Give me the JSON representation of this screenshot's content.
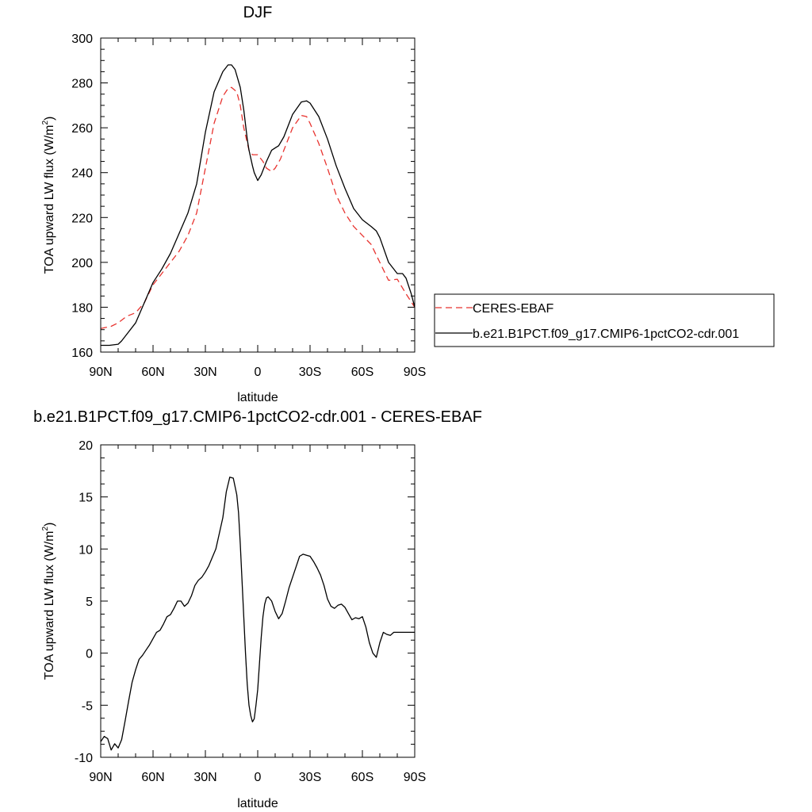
{
  "chart_data": [
    {
      "type": "line",
      "title": "DJF",
      "xlabel": "latitude",
      "ylabel": "TOA upward LW flux (W/m²)",
      "ylabel_main": "TOA upward LW flux (W/m",
      "ylabel_sup": "2",
      "ylabel_close": ")",
      "xlim": [
        90,
        -90
      ],
      "ylim": [
        160,
        300
      ],
      "xticks": [
        90,
        60,
        30,
        0,
        -30,
        -60,
        -90
      ],
      "xtick_labels": [
        "90N",
        "60N",
        "30N",
        "0",
        "30S",
        "60S",
        "90S"
      ],
      "yticks": [
        160,
        180,
        200,
        220,
        240,
        260,
        280,
        300
      ],
      "ytick_labels": [
        "160",
        "180",
        "200",
        "220",
        "240",
        "260",
        "280",
        "300"
      ],
      "grid": false,
      "legend_position": "right-outside",
      "series": [
        {
          "name": "CERES-EBAF",
          "color": "#e8332f",
          "dash": "dashed",
          "x": [
            90,
            84,
            80,
            75,
            70,
            65,
            60,
            55,
            50,
            45,
            40,
            35,
            30,
            25,
            20,
            17,
            15,
            12,
            10,
            8,
            5,
            3,
            0,
            -3,
            -5,
            -8,
            -10,
            -13,
            -15,
            -20,
            -25,
            -28,
            -30,
            -35,
            -40,
            -45,
            -50,
            -55,
            -60,
            -65,
            -70,
            -75,
            -80,
            -85,
            -90
          ],
          "y": [
            170.5,
            171.5,
            173,
            176,
            177.5,
            182,
            190,
            195,
            200,
            205,
            212,
            222,
            242,
            262,
            274,
            277.5,
            278,
            276,
            270,
            260,
            250,
            248,
            248,
            245,
            242,
            240.5,
            242,
            246,
            250,
            260,
            265.5,
            265,
            262,
            253,
            242,
            230,
            222,
            216,
            212,
            208,
            200,
            192,
            192.5,
            186,
            180
          ]
        },
        {
          "name": "b.e21.B1PCT.f09_g17.CMIP6-1pctCO2-cdr.001",
          "color": "#000000",
          "dash": "solid",
          "x": [
            90,
            85,
            80,
            78,
            75,
            70,
            65,
            60,
            55,
            50,
            45,
            40,
            35,
            30,
            25,
            20,
            17,
            15,
            13,
            10,
            8,
            6,
            5,
            3,
            2,
            0,
            -2,
            -5,
            -8,
            -10,
            -12,
            -15,
            -18,
            -20,
            -25,
            -28,
            -30,
            -35,
            -40,
            -45,
            -50,
            -55,
            -60,
            -65,
            -68,
            -70,
            -75,
            -80,
            -83,
            -85,
            -88,
            -90
          ],
          "y": [
            163,
            163,
            163.5,
            165,
            168,
            173,
            182,
            191,
            197,
            204,
            213,
            222,
            235,
            258,
            276,
            285,
            288,
            288,
            286,
            278,
            268,
            255,
            250,
            243,
            240,
            236.5,
            239,
            245,
            250,
            251,
            252,
            256,
            262,
            266,
            271.5,
            272,
            271,
            265,
            255,
            243,
            233,
            224,
            219,
            216,
            214,
            211,
            200,
            195,
            195,
            193,
            186,
            180
          ]
        }
      ]
    },
    {
      "type": "line",
      "title": "b.e21.B1PCT.f09_g17.CMIP6-1pctCO2-cdr.001 - CERES-EBAF",
      "xlabel": "latitude",
      "ylabel": "TOA upward LW flux (W/m²)",
      "ylabel_main": "TOA upward LW flux (W/m",
      "ylabel_sup": "2",
      "ylabel_close": ")",
      "xlim": [
        90,
        -90
      ],
      "ylim": [
        -10,
        20
      ],
      "xticks": [
        90,
        60,
        30,
        0,
        -30,
        -60,
        -90
      ],
      "xtick_labels": [
        "90N",
        "60N",
        "30N",
        "0",
        "30S",
        "60S",
        "90S"
      ],
      "yticks": [
        -10,
        -5,
        0,
        5,
        10,
        15,
        20
      ],
      "ytick_labels": [
        "-10",
        "-5",
        "0",
        "5",
        "10",
        "15",
        "20"
      ],
      "grid": false,
      "series": [
        {
          "name": "",
          "color": "#000000",
          "dash": "solid",
          "x": [
            90,
            88,
            86,
            84,
            82,
            80,
            78,
            76,
            74,
            72,
            70,
            68,
            66,
            64,
            62,
            60,
            58,
            56,
            54,
            52,
            50,
            48,
            46,
            44,
            42,
            40,
            38,
            36,
            34,
            32,
            30,
            28,
            26,
            24,
            22,
            20,
            18,
            16,
            14,
            12,
            11,
            10,
            9,
            8,
            7,
            6,
            5,
            4,
            3,
            2,
            1,
            0,
            -1,
            -2,
            -3,
            -4,
            -5,
            -6,
            -8,
            -10,
            -12,
            -14,
            -16,
            -18,
            -20,
            -22,
            -24,
            -26,
            -28,
            -30,
            -32,
            -34,
            -36,
            -38,
            -40,
            -42,
            -44,
            -46,
            -48,
            -50,
            -52,
            -54,
            -56,
            -58,
            -60,
            -62,
            -64,
            -66,
            -68,
            -70,
            -72,
            -74,
            -76,
            -78,
            -80,
            -82,
            -84,
            -86,
            -87,
            -88,
            -89,
            -90
          ],
          "y": [
            -8.5,
            -8,
            -8.2,
            -9.3,
            -8.7,
            -9.1,
            -8.3,
            -6.5,
            -4.6,
            -2.8,
            -1.6,
            -0.6,
            -0.2,
            0.3,
            0.8,
            1.4,
            2.0,
            2.2,
            2.8,
            3.5,
            3.7,
            4.3,
            5.0,
            5.0,
            4.5,
            4.8,
            5.5,
            6.5,
            7.0,
            7.3,
            7.8,
            8.4,
            9.2,
            10.0,
            11.5,
            13.0,
            15.5,
            16.9,
            16.8,
            15.2,
            13.5,
            10.5,
            7.0,
            3.5,
            0,
            -3,
            -5,
            -6,
            -6.6,
            -6.3,
            -5,
            -3.5,
            -1,
            1.5,
            3.5,
            4.7,
            5.3,
            5.4,
            5.0,
            4.0,
            3.3,
            3.8,
            5.0,
            6.3,
            7.3,
            8.3,
            9.3,
            9.5,
            9.4,
            9.3,
            8.8,
            8.2,
            7.5,
            6.5,
            5.2,
            4.5,
            4.3,
            4.6,
            4.7,
            4.4,
            3.8,
            3.2,
            3.4,
            3.3,
            3.5,
            2.5,
            1.0,
            0,
            -0.4,
            1.0,
            2.0,
            1.8,
            1.7,
            2.0,
            2.0,
            2.0,
            2.0,
            2.0,
            2.0,
            2.0,
            2.0,
            2.0
          ]
        }
      ]
    }
  ]
}
